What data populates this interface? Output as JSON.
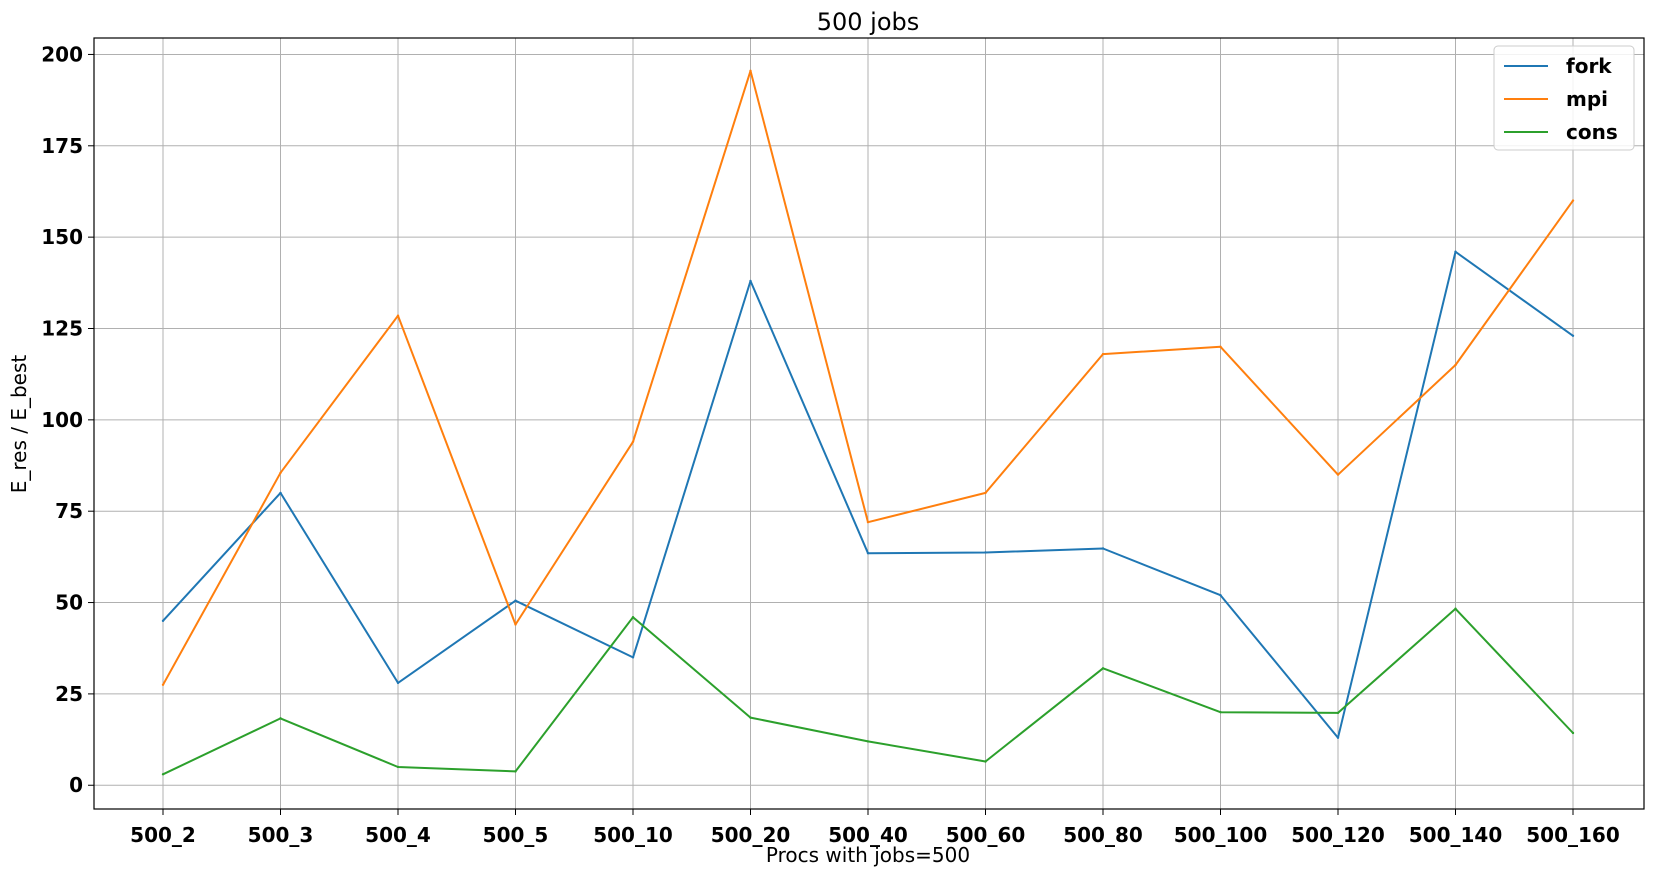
{
  "chart_data": {
    "type": "line",
    "title": "500 jobs",
    "xlabel": "Procs with jobs=500",
    "ylabel": "E_res / E_best",
    "categories": [
      "500_2",
      "500_3",
      "500_4",
      "500_5",
      "500_10",
      "500_20",
      "500_40",
      "500_60",
      "500_80",
      "500_100",
      "500_120",
      "500_140",
      "500_160"
    ],
    "ylim": [
      -6.5,
      204.5
    ],
    "yticks": [
      0,
      25,
      50,
      75,
      100,
      125,
      150,
      175,
      200
    ],
    "grid": true,
    "legend_position": "top-right",
    "series": [
      {
        "name": "fork",
        "color": "#1f77b4",
        "values": [
          45,
          80,
          28,
          50.5,
          35,
          138,
          63.5,
          63.7,
          64.8,
          52,
          13,
          146,
          123
        ]
      },
      {
        "name": "mpi",
        "color": "#ff7f0e",
        "values": [
          27.5,
          85.5,
          128.5,
          44,
          94,
          195.5,
          72,
          80,
          118,
          120,
          85,
          115,
          160
        ]
      },
      {
        "name": "cons",
        "color": "#2ca02c",
        "values": [
          3,
          18.3,
          5,
          3.8,
          46,
          18.5,
          12,
          6.5,
          32,
          20,
          19.8,
          48.3,
          14.3
        ]
      }
    ]
  }
}
